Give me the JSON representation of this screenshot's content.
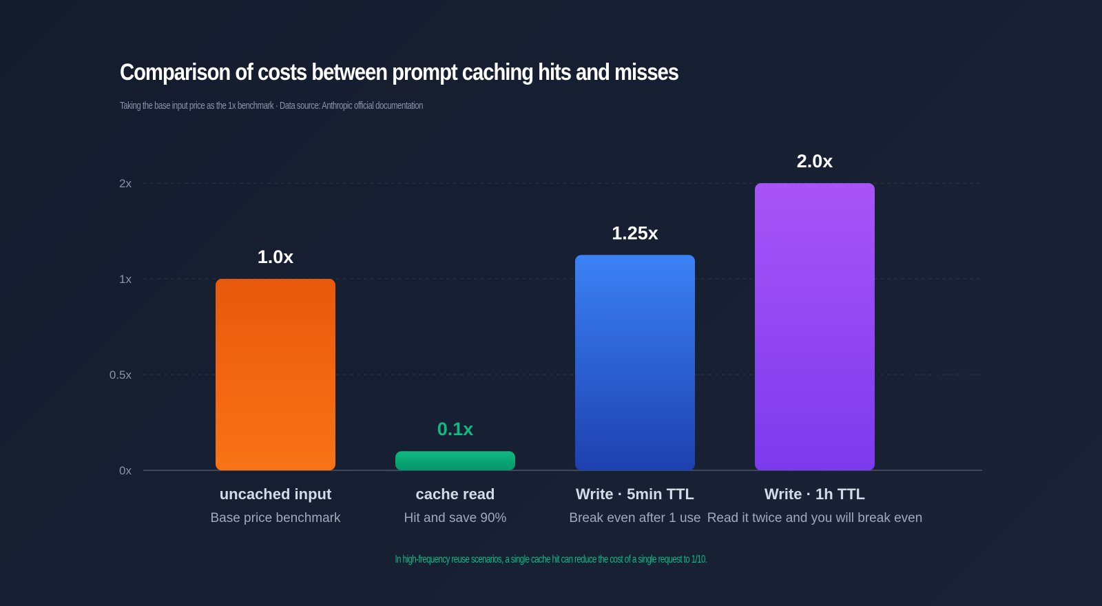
{
  "chart_data": {
    "type": "bar",
    "title": "Comparison of costs between prompt caching hits and misses",
    "subtitle": "Taking the base input price as the 1x benchmark · Data source: Anthropic official documentation",
    "footnote": "In high-frequency reuse scenarios, a single cache hit can reduce the cost of a single request to 1/10.",
    "y_ticks": [
      {
        "value": 0,
        "label": "0x"
      },
      {
        "value": 0.5,
        "label": "0.5x"
      },
      {
        "value": 1,
        "label": "1x"
      },
      {
        "value": 2,
        "label": "2x"
      }
    ],
    "grid": true,
    "bars": [
      {
        "category": "uncached input",
        "note": "Base price benchmark",
        "value": 1.0,
        "value_label": "1.0x",
        "color_top": "#e8590c",
        "color_bottom": "#f97316",
        "label_color": "#ffffff"
      },
      {
        "category": "cache read",
        "note": "Hit and save 90%",
        "value": 0.1,
        "value_label": "0.1x",
        "color_top": "#10b981",
        "color_bottom": "#059669",
        "label_color": "#10b981"
      },
      {
        "category": "Write · 5min TTL",
        "note": "Break even after 1 use",
        "value": 1.25,
        "value_label": "1.25x",
        "color_top": "#3b82f6",
        "color_bottom": "#1e40af",
        "label_color": "#ffffff"
      },
      {
        "category": "Write · 1h TTL",
        "note": "Read it twice and you will break even",
        "value": 2.0,
        "value_label": "2.0x",
        "color_top": "#a855f7",
        "color_bottom": "#7c3aed",
        "label_color": "#ffffff"
      }
    ]
  }
}
